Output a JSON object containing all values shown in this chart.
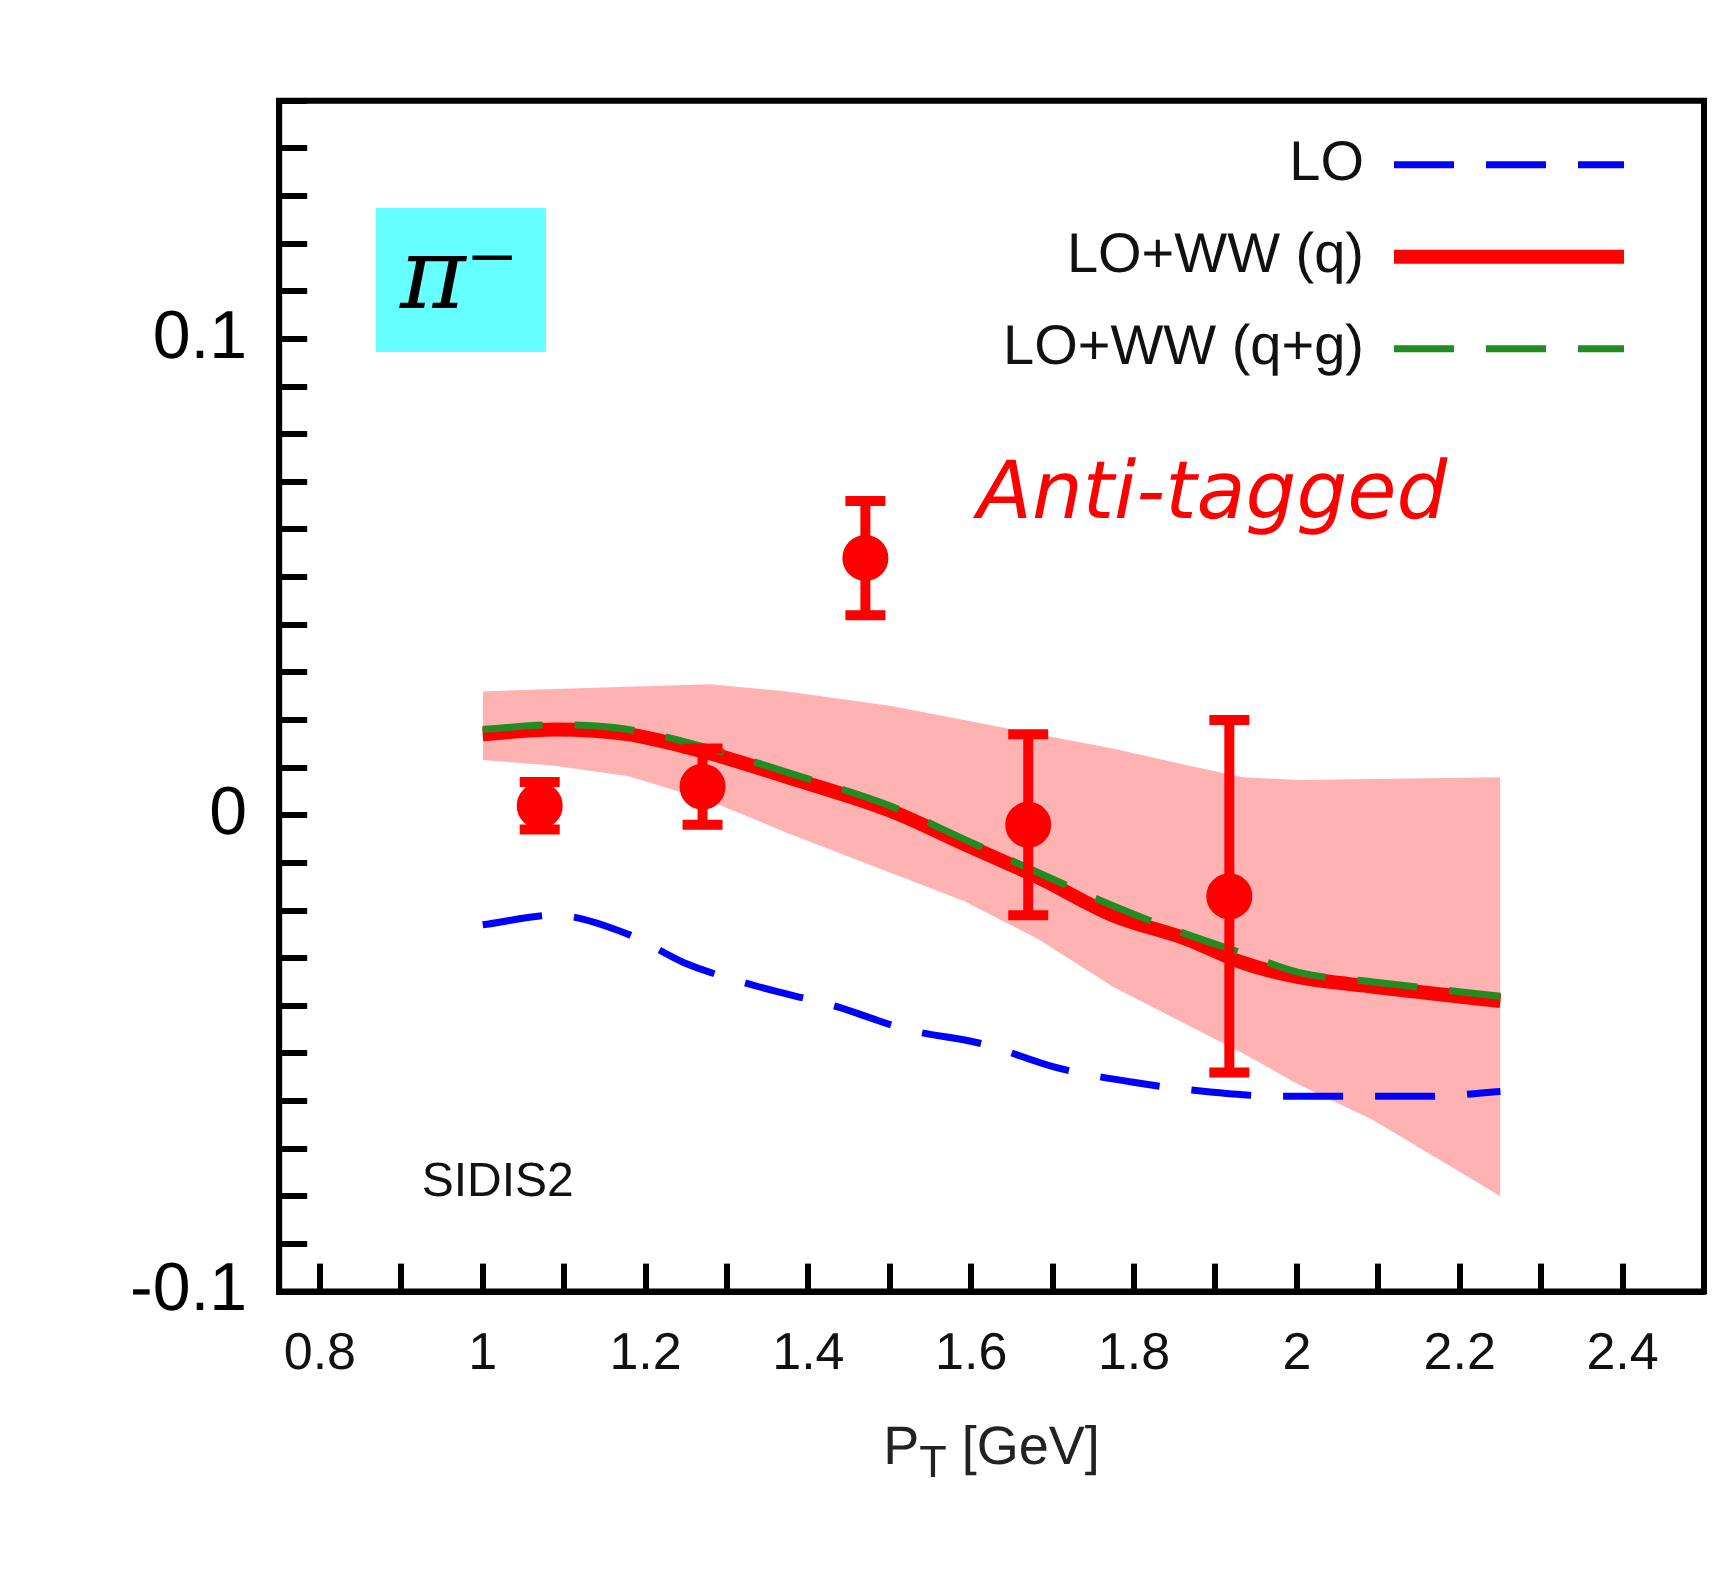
{
  "chart_data": {
    "type": "line",
    "xlabel": "P$_{T}$ [GeV]",
    "xlim": [
      0.75,
      2.5
    ],
    "ylim": [
      -0.1,
      0.15
    ],
    "xticks": [
      0.8,
      {
        "value": 0.9,
        "label": null
      },
      1,
      {
        "value": 1.1,
        "label": null
      },
      1.2,
      {
        "value": 1.3,
        "label": null
      },
      1.4,
      {
        "value": 1.5,
        "label": null
      },
      1.6,
      {
        "value": 1.7,
        "label": null
      },
      1.8,
      {
        "value": 1.9,
        "label": null
      },
      2,
      {
        "value": 2.1,
        "label": null
      },
      2.2,
      {
        "value": 2.3,
        "label": null
      },
      2.4
    ],
    "yticks": [
      -0.1,
      {
        "value": -0.09,
        "label": null
      },
      {
        "value": -0.08,
        "label": null
      },
      {
        "value": -0.07,
        "label": null
      },
      {
        "value": -0.06,
        "label": null
      },
      {
        "value": -0.05,
        "label": null
      },
      {
        "value": -0.04,
        "label": null
      },
      {
        "value": -0.03,
        "label": null
      },
      {
        "value": -0.02,
        "label": null
      },
      {
        "value": -0.01,
        "label": null
      },
      0,
      {
        "value": 0.01,
        "label": null
      },
      {
        "value": 0.02,
        "label": null
      },
      {
        "value": 0.03,
        "label": null
      },
      {
        "value": 0.04,
        "label": null
      },
      {
        "value": 0.05,
        "label": null
      },
      {
        "value": 0.06,
        "label": null
      },
      {
        "value": 0.07,
        "label": null
      },
      {
        "value": 0.08,
        "label": null
      },
      {
        "value": 0.09,
        "label": null
      },
      0.1,
      {
        "value": 0.11,
        "label": null
      },
      {
        "value": 0.12,
        "label": null
      },
      {
        "value": 0.13,
        "label": null
      },
      {
        "value": 0.14,
        "label": null
      },
      {
        "value": 0.15,
        "label": null
      }
    ],
    "grid": false,
    "legend": "top right",
    "annotations": [
      "π⁻",
      "Anti-tagged",
      "SIDIS2"
    ],
    "series": [
      {
        "name": "LO",
        "color": "#0000ff",
        "line_style": "dashed",
        "x": [
          1.0,
          1.088,
          1.179,
          1.248,
          1.339,
          1.431,
          1.522,
          1.614,
          1.705,
          1.797,
          1.888,
          1.979,
          2.07,
          2.162,
          2.25
        ],
        "values": [
          -0.023,
          -0.021,
          -0.025,
          -0.031,
          -0.036,
          -0.04,
          -0.045,
          -0.048,
          -0.053,
          -0.056,
          -0.058,
          -0.059,
          -0.059,
          -0.059,
          -0.058
        ]
      },
      {
        "name": "LO+WW (q)",
        "color": "#ff0000",
        "line_style": "solid",
        "x": [
          1.0,
          1.088,
          1.179,
          1.279,
          1.374,
          1.5,
          1.591,
          1.682,
          1.774,
          1.865,
          1.934,
          2.002,
          2.094,
          2.25
        ],
        "values": [
          0.017,
          0.018,
          0.017,
          0.013,
          0.008,
          0.001,
          -0.006,
          -0.013,
          -0.021,
          -0.026,
          -0.031,
          -0.034,
          -0.036,
          -0.039
        ],
        "upper": [
          0.026,
          0.0265,
          0.027,
          0.0275,
          0.026,
          0.023,
          0.02,
          0.017,
          0.014,
          0.0105,
          0.008,
          0.0074,
          0.0076,
          0.008
        ],
        "lower": [
          0.0116,
          0.0104,
          0.0082,
          0.003,
          -0.0037,
          -0.012,
          -0.018,
          -0.026,
          -0.036,
          -0.044,
          -0.05,
          -0.0565,
          -0.064,
          -0.08
        ]
      },
      {
        "name": "LO+WW (q+g)",
        "color": "#228b22",
        "line_style": "dashed",
        "x": [
          1.0,
          1.088,
          1.179,
          1.279,
          1.374,
          1.5,
          1.591,
          1.682,
          1.774,
          1.865,
          1.934,
          2.002,
          2.094,
          2.25
        ],
        "values": [
          0.018,
          0.019,
          0.018,
          0.014,
          0.009,
          0.002,
          -0.005,
          -0.012,
          -0.019,
          -0.025,
          -0.029,
          -0.033,
          -0.035,
          -0.038
        ]
      },
      {
        "type": "scatter",
        "color": "#ff0000",
        "marker": "circle",
        "x": [
          1.07,
          1.27,
          1.47,
          1.67,
          1.917
        ],
        "values": [
          0.002,
          0.006,
          0.054,
          -0.002,
          -0.017
        ],
        "errors": [
          0.005,
          0.008,
          0.012,
          0.019,
          0.037
        ]
      }
    ]
  }
}
